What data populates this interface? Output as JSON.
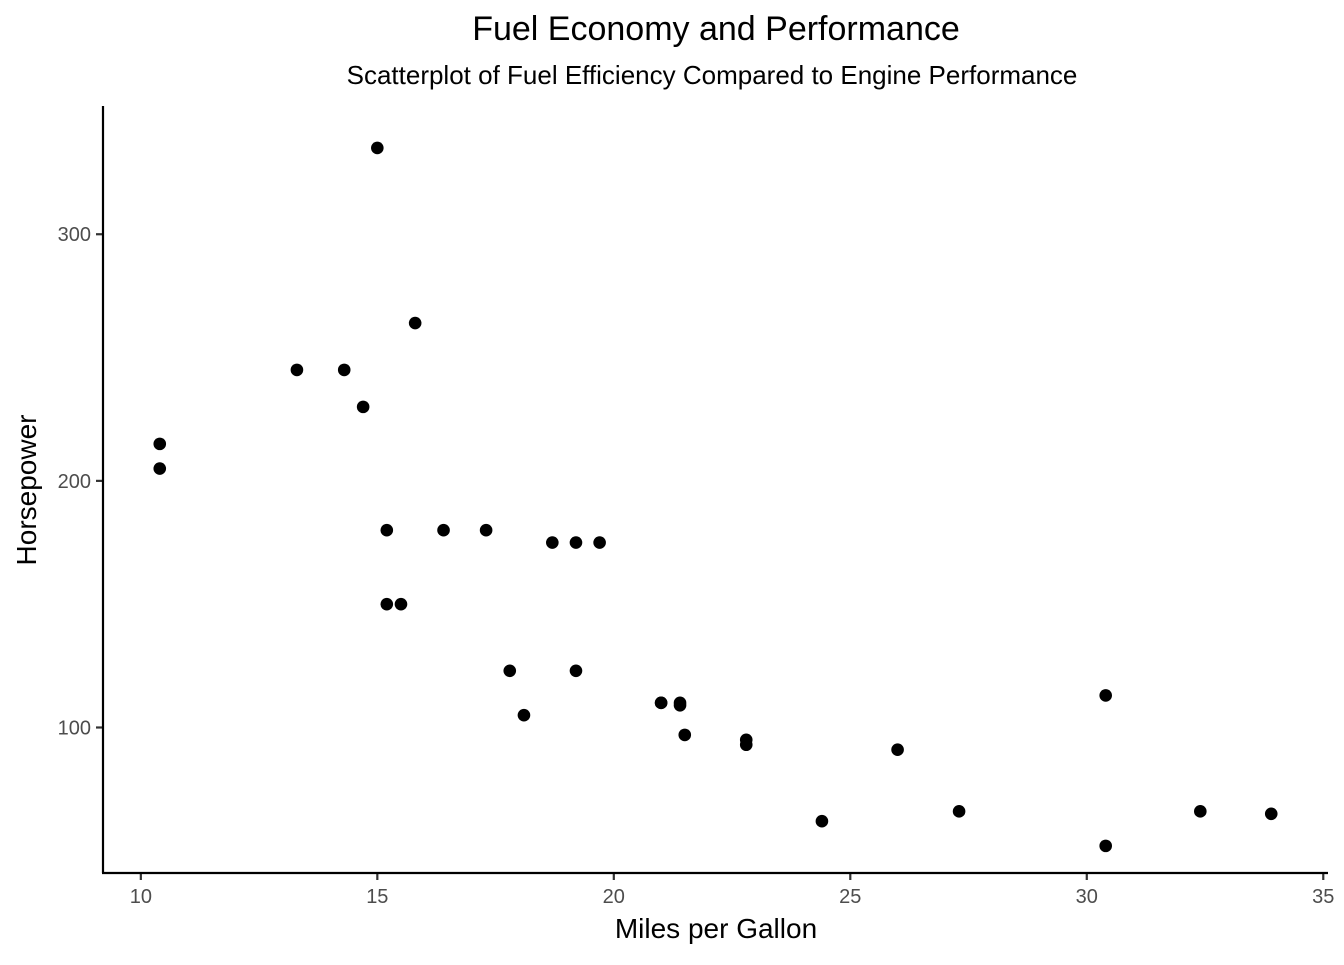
{
  "title": "Fuel Economy and Performance",
  "subtitle": "Scatterplot of Fuel Efficiency Compared to Engine Performance",
  "chart_data": {
    "type": "scatter",
    "title": "Fuel Economy and Performance",
    "subtitle": "Scatterplot of Fuel Efficiency Compared to Engine Performance",
    "xlabel": "Miles per Gallon",
    "ylabel": "Horsepower",
    "xlim": [
      9.2,
      35.1
    ],
    "ylim": [
      41,
      352
    ],
    "xticks": [
      10,
      15,
      20,
      25,
      30,
      35
    ],
    "yticks": [
      100,
      200,
      300
    ],
    "grid": false,
    "legend": "none",
    "point_color": "#000000",
    "x": [
      21.0,
      21.0,
      22.8,
      21.4,
      18.7,
      18.1,
      14.3,
      24.4,
      22.8,
      19.2,
      17.8,
      16.4,
      17.3,
      15.2,
      10.4,
      10.4,
      14.7,
      32.4,
      30.4,
      33.9,
      21.5,
      15.5,
      15.2,
      13.3,
      19.2,
      27.3,
      26.0,
      30.4,
      15.8,
      19.7,
      15.0,
      21.4
    ],
    "y": [
      110,
      110,
      93,
      110,
      175,
      105,
      245,
      62,
      95,
      123,
      123,
      180,
      180,
      180,
      205,
      215,
      230,
      66,
      52,
      65,
      97,
      150,
      150,
      245,
      175,
      66,
      91,
      113,
      264,
      175,
      335,
      109
    ]
  }
}
